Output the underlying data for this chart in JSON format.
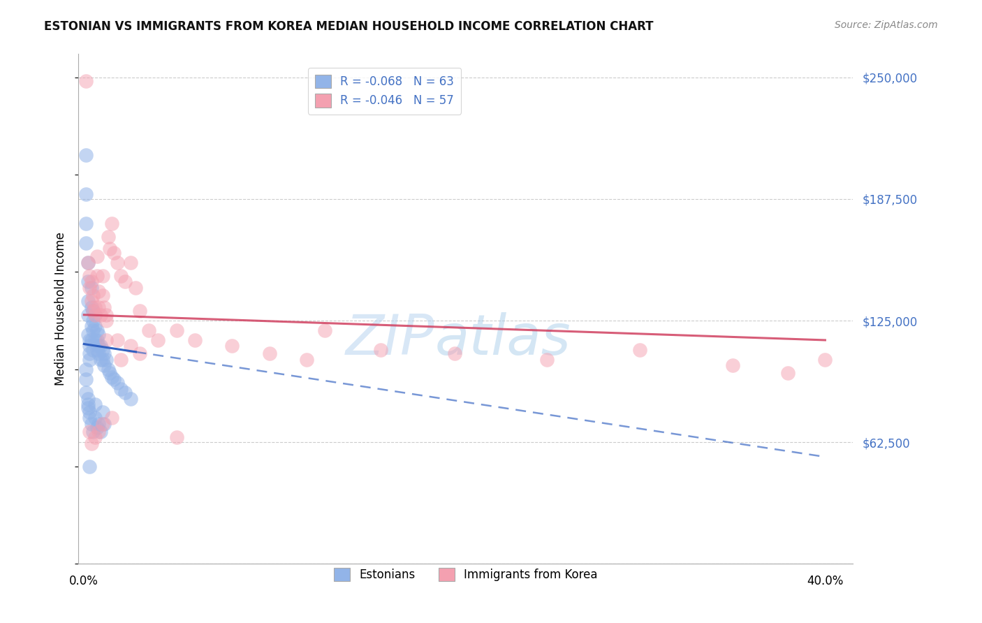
{
  "title": "ESTONIAN VS IMMIGRANTS FROM KOREA MEDIAN HOUSEHOLD INCOME CORRELATION CHART",
  "source": "Source: ZipAtlas.com",
  "ylabel": "Median Household Income",
  "xlim": [
    -0.003,
    0.415
  ],
  "ylim": [
    0,
    262000
  ],
  "yticks": [
    0,
    62500,
    125000,
    187500,
    250000
  ],
  "ytick_labels": [
    "",
    "$62,500",
    "$125,000",
    "$187,500",
    "$250,000"
  ],
  "xticks": [
    0.0,
    0.05,
    0.1,
    0.15,
    0.2,
    0.25,
    0.3,
    0.35,
    0.4
  ],
  "legend_r1": "R = -0.068",
  "legend_n1": "N = 63",
  "legend_r2": "R = -0.046",
  "legend_n2": "N = 57",
  "color_blue": "#92b4e8",
  "color_pink": "#f4a0b0",
  "color_blue_line": "#3060c0",
  "color_pink_line": "#e0406080",
  "watermark_zip": "ZIP",
  "watermark_atlas": "atlas",
  "blue_x": [
    0.001,
    0.001,
    0.001,
    0.001,
    0.002,
    0.002,
    0.002,
    0.002,
    0.002,
    0.003,
    0.003,
    0.003,
    0.003,
    0.004,
    0.004,
    0.004,
    0.004,
    0.005,
    0.005,
    0.005,
    0.005,
    0.006,
    0.006,
    0.006,
    0.007,
    0.007,
    0.007,
    0.008,
    0.008,
    0.008,
    0.009,
    0.009,
    0.01,
    0.01,
    0.011,
    0.011,
    0.012,
    0.013,
    0.014,
    0.015,
    0.016,
    0.018,
    0.02,
    0.022,
    0.025,
    0.001,
    0.001,
    0.002,
    0.002,
    0.003,
    0.003,
    0.004,
    0.005,
    0.006,
    0.006,
    0.007,
    0.008,
    0.009,
    0.01,
    0.011,
    0.002,
    0.003,
    0.001
  ],
  "blue_y": [
    210000,
    190000,
    175000,
    165000,
    155000,
    145000,
    135000,
    128000,
    118000,
    115000,
    112000,
    108000,
    105000,
    142000,
    132000,
    122000,
    115000,
    130000,
    125000,
    120000,
    110000,
    128000,
    122000,
    115000,
    120000,
    115000,
    110000,
    118000,
    112000,
    108000,
    112000,
    105000,
    110000,
    105000,
    108000,
    102000,
    105000,
    100000,
    98000,
    96000,
    95000,
    93000,
    90000,
    88000,
    85000,
    95000,
    88000,
    85000,
    80000,
    78000,
    75000,
    72000,
    68000,
    82000,
    75000,
    70000,
    72000,
    68000,
    78000,
    72000,
    82000,
    50000,
    100000
  ],
  "pink_x": [
    0.001,
    0.002,
    0.003,
    0.003,
    0.004,
    0.004,
    0.005,
    0.005,
    0.006,
    0.006,
    0.007,
    0.007,
    0.008,
    0.008,
    0.009,
    0.01,
    0.01,
    0.011,
    0.012,
    0.012,
    0.013,
    0.014,
    0.015,
    0.016,
    0.018,
    0.02,
    0.022,
    0.025,
    0.028,
    0.03,
    0.035,
    0.04,
    0.05,
    0.06,
    0.08,
    0.1,
    0.12,
    0.13,
    0.16,
    0.2,
    0.25,
    0.3,
    0.35,
    0.38,
    0.4,
    0.012,
    0.018,
    0.025,
    0.03,
    0.02,
    0.015,
    0.01,
    0.008,
    0.006,
    0.004,
    0.003,
    0.05
  ],
  "pink_y": [
    248000,
    155000,
    148000,
    142000,
    145000,
    135000,
    138000,
    130000,
    132000,
    128000,
    158000,
    148000,
    140000,
    132000,
    128000,
    148000,
    138000,
    132000,
    128000,
    125000,
    168000,
    162000,
    175000,
    160000,
    155000,
    148000,
    145000,
    155000,
    142000,
    130000,
    120000,
    115000,
    120000,
    115000,
    112000,
    108000,
    105000,
    120000,
    110000,
    108000,
    105000,
    110000,
    102000,
    98000,
    105000,
    115000,
    115000,
    112000,
    108000,
    105000,
    75000,
    72000,
    68000,
    65000,
    62000,
    68000,
    65000
  ],
  "blue_line_x0": 0.0,
  "blue_line_x_solid_end": 0.028,
  "blue_line_x1": 0.4,
  "blue_line_y0": 113000,
  "blue_line_y1": 55000,
  "pink_line_x0": 0.0,
  "pink_line_x1": 0.4,
  "pink_line_y0": 128000,
  "pink_line_y1": 115000
}
